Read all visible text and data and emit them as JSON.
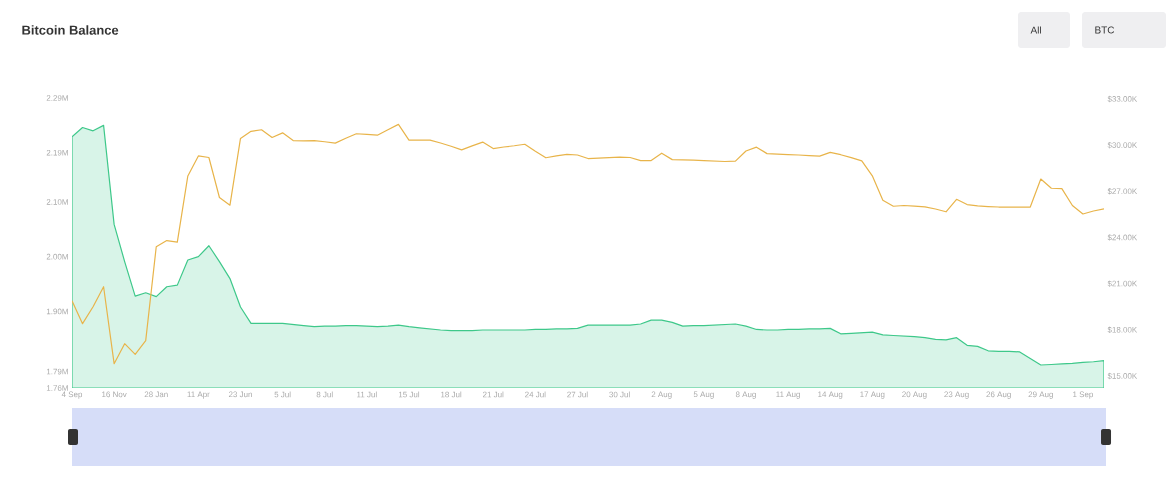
{
  "chart_data": {
    "type": "area",
    "title": "Bitcoin Balance",
    "annotations": [
      "All",
      "BTC"
    ],
    "categories": [
      "4 Sep",
      null,
      null,
      null,
      "16 Nov",
      null,
      null,
      null,
      "28 Jan",
      null,
      null,
      null,
      "11 Apr",
      null,
      null,
      null,
      "23 Jun",
      null,
      null,
      null,
      "5 Jul",
      null,
      null,
      null,
      "8 Jul",
      null,
      null,
      null,
      "11 Jul",
      null,
      null,
      null,
      "15 Jul",
      null,
      null,
      null,
      "18 Jul",
      null,
      null,
      null,
      "21 Jul",
      null,
      null,
      null,
      "24 Jul",
      null,
      null,
      null,
      "27 Jul",
      null,
      null,
      null,
      "30 Jul",
      null,
      null,
      null,
      "2 Aug",
      null,
      null,
      null,
      "5 Aug",
      null,
      null,
      null,
      "8 Aug",
      null,
      null,
      null,
      "11 Aug",
      null,
      null,
      null,
      "14 Aug",
      null,
      null,
      null,
      "17 Aug",
      null,
      null,
      null,
      "20 Aug",
      null,
      null,
      null,
      "23 Aug",
      null,
      null,
      null,
      "26 Aug",
      null,
      null,
      null,
      "29 Aug",
      null,
      null,
      null,
      "1 Sep",
      null,
      null
    ],
    "ylim": [
      1760000,
      2290000
    ],
    "yticks": [
      {
        "value": 1760000,
        "label": "1.76M"
      },
      {
        "value": 1790000,
        "label": "1.79M"
      },
      {
        "value": 1900000,
        "label": "1.90M"
      },
      {
        "value": 2000000,
        "label": "2.00M"
      },
      {
        "value": 2100000,
        "label": "2.10M"
      },
      {
        "value": 2190000,
        "label": "2.19M"
      },
      {
        "value": 2290000,
        "label": "2.29M"
      }
    ],
    "y2lim": [
      15000,
      33000
    ],
    "y2ticks": [
      {
        "value": 15000,
        "label": "$15.00K"
      },
      {
        "value": 18000,
        "label": "$18.00K"
      },
      {
        "value": 21000,
        "label": "$21.00K"
      },
      {
        "value": 24000,
        "label": "$24.00K"
      },
      {
        "value": 27000,
        "label": "$27.00K"
      },
      {
        "value": 30000,
        "label": "$30.00K"
      },
      {
        "value": 33000,
        "label": "$33.00K"
      }
    ],
    "series": [
      {
        "color": "#3ec88a",
        "values": [
          2219000,
          2236000,
          2230000,
          2240000,
          2059000,
          1991000,
          1928000,
          1934000,
          1927000,
          1945000,
          1948000,
          1994000,
          2000000,
          2020000,
          1991000,
          1960000,
          1908000,
          1878000,
          1878000,
          1878000,
          1878000,
          1876000,
          1874000,
          1872000,
          1873000,
          1873000,
          1874000,
          1874000,
          1873000,
          1872000,
          1873000,
          1875000,
          1872000,
          1870000,
          1868000,
          1866000,
          1865000,
          1865000,
          1865000,
          1866000,
          1866000,
          1866000,
          1866000,
          1866000,
          1867000,
          1867000,
          1868000,
          1868000,
          1869000,
          1875000,
          1875000,
          1875000,
          1875000,
          1875000,
          1877000,
          1884000,
          1884000,
          1880000,
          1873000,
          1874000,
          1874000,
          1875000,
          1876000,
          1877000,
          1873000,
          1867000,
          1866000,
          1866000,
          1867000,
          1867000,
          1868000,
          1868000,
          1869000,
          1859000,
          1860000,
          1861000,
          1862000,
          1857000,
          1856000,
          1855000,
          1854000,
          1852000,
          1849000,
          1848000,
          1852000,
          1838000,
          1836000,
          1828000,
          1827000,
          1827000,
          1826000,
          1814000,
          1802000,
          1803000,
          1804000,
          1805000,
          1807000,
          1808000,
          1810000
        ]
      },
      {
        "type": "line",
        "axis": "y2",
        "color": "#e8b44a",
        "values": [
          19890,
          18400,
          19500,
          20800,
          15800,
          17100,
          16410,
          17300,
          23400,
          23800,
          23700,
          28000,
          29300,
          29200,
          26600,
          26100,
          30440,
          30900,
          31000,
          30500,
          30800,
          30300,
          30280,
          30300,
          30220,
          30130,
          30450,
          30740,
          30700,
          30650,
          31000,
          31350,
          30330,
          30330,
          30330,
          30140,
          29930,
          29690,
          29950,
          30200,
          29780,
          29880,
          29960,
          30060,
          29600,
          29180,
          29300,
          29400,
          29360,
          29130,
          29160,
          29190,
          29220,
          29200,
          29000,
          29000,
          29480,
          29060,
          29040,
          29030,
          29000,
          28970,
          28940,
          28960,
          29620,
          29870,
          29450,
          29420,
          29390,
          29360,
          29320,
          29290,
          29530,
          29380,
          29190,
          28980,
          28010,
          26420,
          26030,
          26080,
          26040,
          25990,
          25850,
          25670,
          26480,
          26140,
          26050,
          26010,
          25980,
          25980,
          25980,
          25980,
          27800,
          27200,
          27180,
          26080,
          25530,
          25720,
          25860
        ]
      }
    ]
  }
}
